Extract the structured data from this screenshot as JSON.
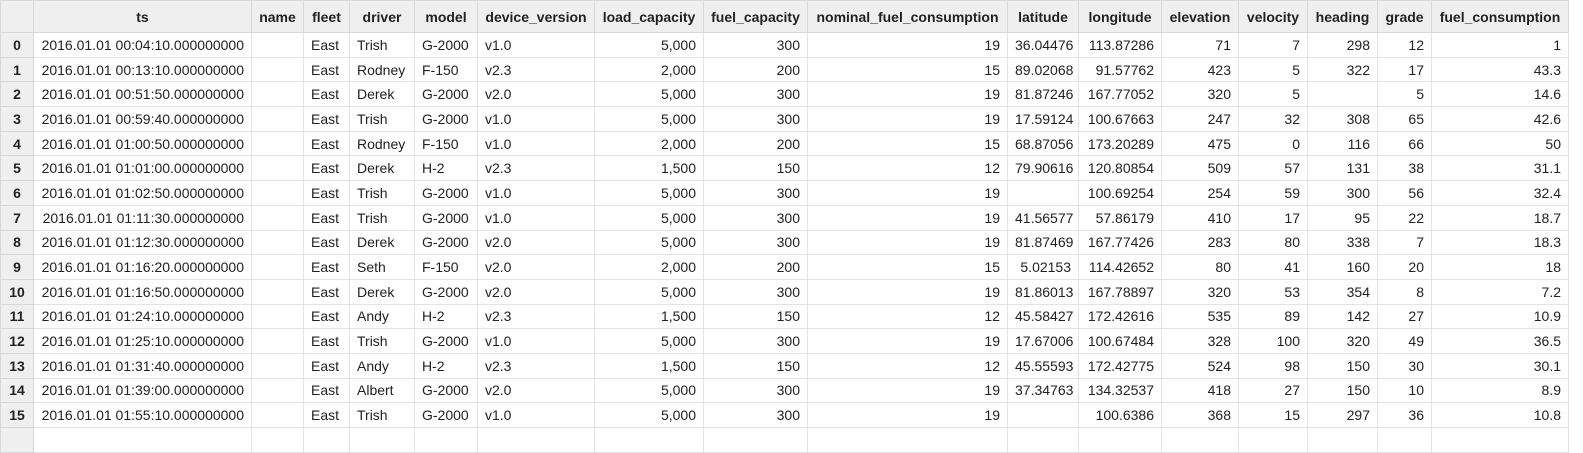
{
  "table": {
    "columns": [
      null,
      "ts",
      "name",
      "fleet",
      "driver",
      "model",
      "device_version",
      "load_capacity",
      "fuel_capacity",
      "nominal_fuel_consumption",
      "latitude",
      "longitude",
      "elevation",
      "velocity",
      "heading",
      "grade",
      "fuel_consumption"
    ],
    "rows": [
      [
        "0",
        "2016.01.01 00:04:10.000000000",
        null,
        "East",
        "Trish",
        "G-2000",
        "v1.0",
        "5,000",
        "300",
        "19",
        "36.04476",
        "113.87286",
        "71",
        "7",
        "298",
        "12",
        "1"
      ],
      [
        "1",
        "2016.01.01 00:13:10.000000000",
        null,
        "East",
        "Rodney",
        "F-150",
        "v2.3",
        "2,000",
        "200",
        "15",
        "89.02068",
        "91.57762",
        "423",
        "5",
        "322",
        "17",
        "43.3"
      ],
      [
        "2",
        "2016.01.01 00:51:50.000000000",
        null,
        "East",
        "Derek",
        "G-2000",
        "v2.0",
        "5,000",
        "300",
        "19",
        "81.87246",
        "167.77052",
        "320",
        "5",
        null,
        "5",
        "14.6"
      ],
      [
        "3",
        "2016.01.01 00:59:40.000000000",
        null,
        "East",
        "Trish",
        "G-2000",
        "v1.0",
        "5,000",
        "300",
        "19",
        "17.59124",
        "100.67663",
        "247",
        "32",
        "308",
        "65",
        "42.6"
      ],
      [
        "4",
        "2016.01.01 01:00:50.000000000",
        null,
        "East",
        "Rodney",
        "F-150",
        "v1.0",
        "2,000",
        "200",
        "15",
        "68.87056",
        "173.20289",
        "475",
        "0",
        "116",
        "66",
        "50"
      ],
      [
        "5",
        "2016.01.01 01:01:00.000000000",
        null,
        "East",
        "Derek",
        "H-2",
        "v2.3",
        "1,500",
        "150",
        "12",
        "79.90616",
        "120.80854",
        "509",
        "57",
        "131",
        "38",
        "31.1"
      ],
      [
        "6",
        "2016.01.01 01:02:50.000000000",
        null,
        "East",
        "Trish",
        "G-2000",
        "v1.0",
        "5,000",
        "300",
        "19",
        null,
        "100.69254",
        "254",
        "59",
        "300",
        "56",
        "32.4"
      ],
      [
        "7",
        "2016.01.01 01:11:30.000000000",
        null,
        "East",
        "Trish",
        "G-2000",
        "v1.0",
        "5,000",
        "300",
        "19",
        "41.56577",
        "57.86179",
        "410",
        "17",
        "95",
        "22",
        "18.7"
      ],
      [
        "8",
        "2016.01.01 01:12:30.000000000",
        null,
        "East",
        "Derek",
        "G-2000",
        "v2.0",
        "5,000",
        "300",
        "19",
        "81.87469",
        "167.77426",
        "283",
        "80",
        "338",
        "7",
        "18.3"
      ],
      [
        "9",
        "2016.01.01 01:16:20.000000000",
        null,
        "East",
        "Seth",
        "F-150",
        "v2.0",
        "2,000",
        "200",
        "15",
        "5.02153",
        "114.42652",
        "80",
        "41",
        "160",
        "20",
        "18"
      ],
      [
        "10",
        "2016.01.01 01:16:50.000000000",
        null,
        "East",
        "Derek",
        "G-2000",
        "v2.0",
        "5,000",
        "300",
        "19",
        "81.86013",
        "167.78897",
        "320",
        "53",
        "354",
        "8",
        "7.2"
      ],
      [
        "11",
        "2016.01.01 01:24:10.000000000",
        null,
        "East",
        "Andy",
        "H-2",
        "v2.3",
        "1,500",
        "150",
        "12",
        "45.58427",
        "172.42616",
        "535",
        "89",
        "142",
        "27",
        "10.9"
      ],
      [
        "12",
        "2016.01.01 01:25:10.000000000",
        null,
        "East",
        "Trish",
        "G-2000",
        "v1.0",
        "5,000",
        "300",
        "19",
        "17.67006",
        "100.67484",
        "328",
        "100",
        "320",
        "49",
        "36.5"
      ],
      [
        "13",
        "2016.01.01 01:31:40.000000000",
        null,
        "East",
        "Andy",
        "H-2",
        "v2.3",
        "1,500",
        "150",
        "12",
        "45.55593",
        "172.42775",
        "524",
        "98",
        "150",
        "30",
        "30.1"
      ],
      [
        "14",
        "2016.01.01 01:39:00.000000000",
        null,
        "East",
        "Albert",
        "G-2000",
        "v2.0",
        "5,000",
        "300",
        "19",
        "37.34763",
        "134.32537",
        "418",
        "27",
        "150",
        "10",
        "8.9"
      ],
      [
        "15",
        "2016.01.01 01:55:10.000000000",
        null,
        "East",
        "Trish",
        "G-2000",
        "v1.0",
        "5,000",
        "300",
        "19",
        null,
        "100.6386",
        "368",
        "15",
        "297",
        "36",
        "10.8"
      ]
    ]
  }
}
